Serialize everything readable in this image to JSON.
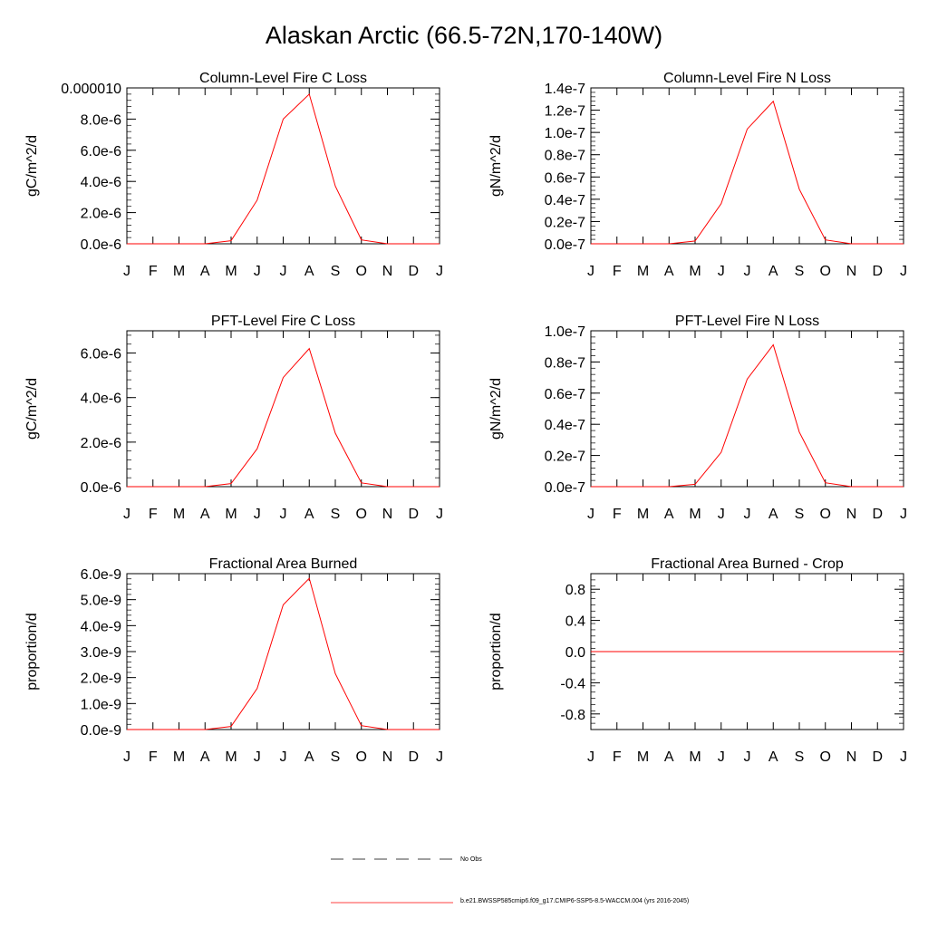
{
  "title": "Alaskan Arctic (66.5-72N,170-140W)",
  "months": [
    "J",
    "F",
    "M",
    "A",
    "M",
    "J",
    "J",
    "A",
    "S",
    "O",
    "N",
    "D",
    "J"
  ],
  "line_color": "#ff0000",
  "legend": {
    "obs_label": "No Obs",
    "model_label": "b.e21.BWSSP585cmip6.f09_g17.CMIP6-SSP5-8.5-WACCM.004 (yrs 2016-2045)"
  },
  "chart_data": [
    {
      "type": "line",
      "title": "Column-Level Fire C Loss",
      "ylabel": "gC/m^2/d",
      "x": [
        "J",
        "F",
        "M",
        "A",
        "M",
        "J",
        "J",
        "A",
        "S",
        "O",
        "N",
        "D",
        "J"
      ],
      "ylim": [
        0,
        1e-05
      ],
      "yticks": [
        0,
        2e-06,
        4e-06,
        6e-06,
        8e-06,
        1e-05
      ],
      "yticklabels": [
        "0.0e-6",
        "2.0e-6",
        "4.0e-6",
        "6.0e-6",
        "8.0e-6",
        "0.000010"
      ],
      "series": [
        {
          "values": [
            0,
            0,
            0,
            0,
            2e-07,
            2.8e-06,
            8e-06,
            9.6e-06,
            3.7e-06,
            2.5e-07,
            0,
            0,
            0
          ]
        }
      ]
    },
    {
      "type": "line",
      "title": "Column-Level Fire N Loss",
      "ylabel": "gN/m^2/d",
      "x": [
        "J",
        "F",
        "M",
        "A",
        "M",
        "J",
        "J",
        "A",
        "S",
        "O",
        "N",
        "D",
        "J"
      ],
      "ylim": [
        0,
        1.4e-07
      ],
      "yticks": [
        0,
        2e-08,
        4e-08,
        6e-08,
        8e-08,
        1e-07,
        1.2e-07,
        1.4e-07
      ],
      "yticklabels": [
        "0.0e-7",
        "0.2e-7",
        "0.4e-7",
        "0.6e-7",
        "0.8e-7",
        "1.0e-7",
        "1.2e-7",
        "1.4e-7"
      ],
      "series": [
        {
          "values": [
            0,
            0,
            0,
            0,
            2.5e-09,
            3.6e-08,
            1.03e-07,
            1.28e-07,
            4.9e-08,
            3.5e-09,
            0,
            0,
            0
          ]
        }
      ]
    },
    {
      "type": "line",
      "title": "PFT-Level Fire C Loss",
      "ylabel": "gC/m^2/d",
      "x": [
        "J",
        "F",
        "M",
        "A",
        "M",
        "J",
        "J",
        "A",
        "S",
        "O",
        "N",
        "D",
        "J"
      ],
      "ylim": [
        0,
        7e-06
      ],
      "yticks": [
        0,
        2e-06,
        4e-06,
        6e-06
      ],
      "yticklabels": [
        "0.0e-6",
        "2.0e-6",
        "4.0e-6",
        "6.0e-6"
      ],
      "series": [
        {
          "values": [
            0,
            0,
            0,
            0,
            1.4e-07,
            1.7e-06,
            4.9e-06,
            6.2e-06,
            2.4e-06,
            1.7e-07,
            0,
            0,
            0
          ]
        }
      ]
    },
    {
      "type": "line",
      "title": "PFT-Level Fire N Loss",
      "ylabel": "gN/m^2/d",
      "x": [
        "J",
        "F",
        "M",
        "A",
        "M",
        "J",
        "J",
        "A",
        "S",
        "O",
        "N",
        "D",
        "J"
      ],
      "ylim": [
        0,
        1e-07
      ],
      "yticks": [
        0,
        2e-08,
        4e-08,
        6e-08,
        8e-08,
        1e-07
      ],
      "yticklabels": [
        "0.0e-7",
        "0.2e-7",
        "0.4e-7",
        "0.6e-7",
        "0.8e-7",
        "1.0e-7"
      ],
      "series": [
        {
          "values": [
            0,
            0,
            0,
            0,
            1.5e-09,
            2.2e-08,
            6.9e-08,
            9.1e-08,
            3.5e-08,
            2.5e-09,
            0,
            0,
            0
          ]
        }
      ]
    },
    {
      "type": "line",
      "title": "Fractional Area Burned",
      "ylabel": "proportion/d",
      "x": [
        "J",
        "F",
        "M",
        "A",
        "M",
        "J",
        "J",
        "A",
        "S",
        "O",
        "N",
        "D",
        "J"
      ],
      "ylim": [
        0,
        6e-09
      ],
      "yticks": [
        0,
        1e-09,
        2e-09,
        3e-09,
        4e-09,
        5e-09,
        6e-09
      ],
      "yticklabels": [
        "0.0e-9",
        "1.0e-9",
        "2.0e-9",
        "3.0e-9",
        "4.0e-9",
        "5.0e-9",
        "6.0e-9"
      ],
      "series": [
        {
          "values": [
            0,
            0,
            0,
            0,
            1.2e-10,
            1.58e-09,
            4.8e-09,
            5.82e-09,
            2.15e-09,
            1.5e-10,
            0,
            0,
            0
          ]
        }
      ]
    },
    {
      "type": "line",
      "title": "Fractional Area Burned - Crop",
      "ylabel": "proportion/d",
      "x": [
        "J",
        "F",
        "M",
        "A",
        "M",
        "J",
        "J",
        "A",
        "S",
        "O",
        "N",
        "D",
        "J"
      ],
      "ylim": [
        -1,
        1
      ],
      "yticks": [
        -0.8,
        -0.4,
        0,
        0.4,
        0.8
      ],
      "yticklabels": [
        "-0.8",
        "-0.4",
        "0.0",
        "0.4",
        "0.8"
      ],
      "series": [
        {
          "values": [
            0,
            0,
            0,
            0,
            0,
            0,
            0,
            0,
            0,
            0,
            0,
            0,
            0
          ]
        }
      ]
    }
  ]
}
